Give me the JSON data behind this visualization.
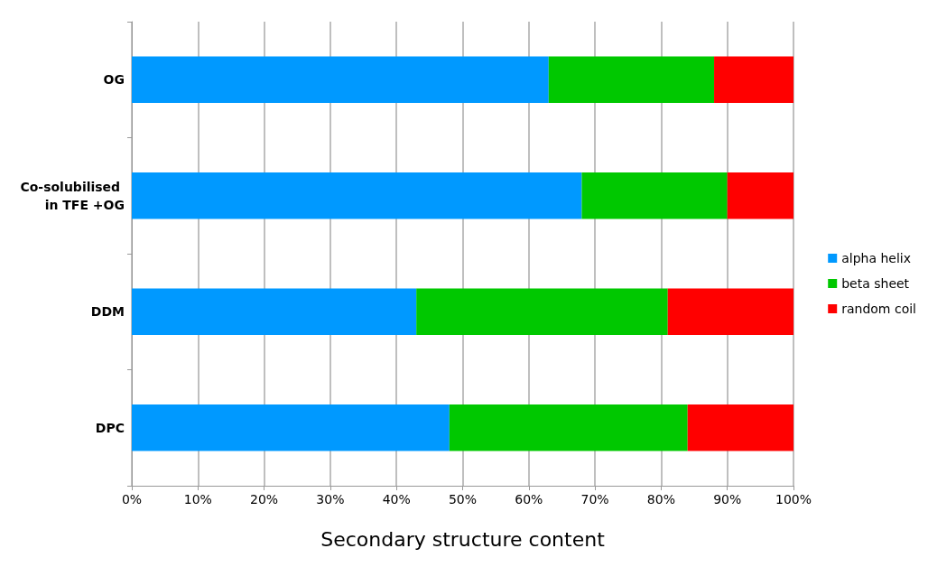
{
  "chart_data": {
    "type": "bar",
    "orientation": "horizontal",
    "stacked": true,
    "xlabel": "Secondary structure content",
    "categories": [
      "OG",
      "Co-solubilised in TFE +OG",
      "DDM",
      "DPC"
    ],
    "series": [
      {
        "name": "alpha helix",
        "color": "#0099ff",
        "values": [
          63,
          68,
          43,
          48
        ]
      },
      {
        "name": "beta sheet",
        "color": "#00c800",
        "values": [
          25,
          22,
          38,
          36
        ]
      },
      {
        "name": "random coil",
        "color": "#ff0000",
        "values": [
          12,
          10,
          19,
          16
        ]
      }
    ],
    "xlim": [
      0,
      100
    ],
    "xticks": [
      {
        "value": 0,
        "label": "0%"
      },
      {
        "value": 10,
        "label": "10%"
      },
      {
        "value": 20,
        "label": "20%"
      },
      {
        "value": 30,
        "label": "30%"
      },
      {
        "value": 40,
        "label": "40%"
      },
      {
        "value": 50,
        "label": "50%"
      },
      {
        "value": 60,
        "label": "60%"
      },
      {
        "value": 70,
        "label": "70%"
      },
      {
        "value": 80,
        "label": "80%"
      },
      {
        "value": 90,
        "label": "90%"
      },
      {
        "value": 100,
        "label": "100%"
      }
    ],
    "grid": "x",
    "legend": "right"
  }
}
